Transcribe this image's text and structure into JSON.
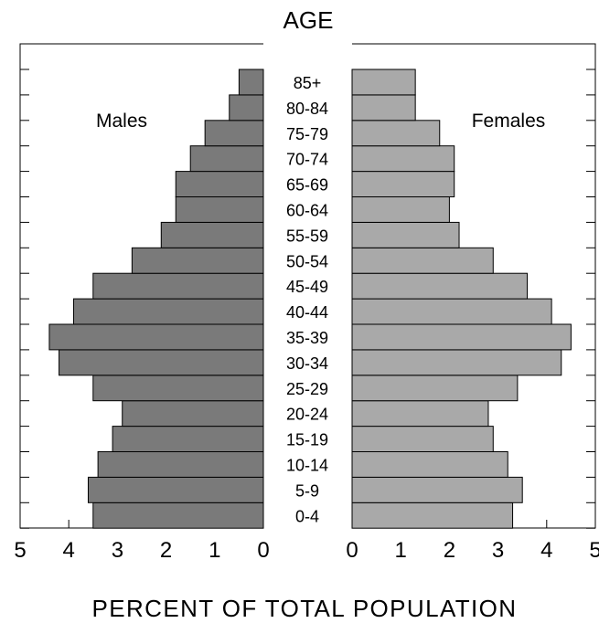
{
  "chart_data": {
    "type": "bar",
    "title": "AGE",
    "xlabel": "PERCENT OF TOTAL POPULATION",
    "ylabel": "",
    "categories": [
      "0-4",
      "5-9",
      "10-14",
      "15-19",
      "20-24",
      "25-29",
      "30-34",
      "35-39",
      "40-44",
      "45-49",
      "50-54",
      "55-59",
      "60-64",
      "65-69",
      "70-74",
      "75-79",
      "80-84",
      "85+"
    ],
    "series": [
      {
        "name": "Males",
        "side": "left",
        "color": "#7a7a7a",
        "values": [
          3.5,
          3.6,
          3.4,
          3.1,
          2.9,
          3.5,
          4.2,
          4.4,
          3.9,
          3.5,
          2.7,
          2.1,
          1.8,
          1.8,
          1.5,
          1.2,
          0.7,
          0.5
        ]
      },
      {
        "name": "Females",
        "side": "right",
        "color": "#a9a9a9",
        "values": [
          3.3,
          3.5,
          3.2,
          2.9,
          2.8,
          3.4,
          4.3,
          4.5,
          4.1,
          3.6,
          2.9,
          2.2,
          2.0,
          2.1,
          2.1,
          1.8,
          1.3,
          1.3
        ]
      }
    ],
    "x_ticks_left": [
      "5",
      "4",
      "3",
      "2",
      "1",
      "0"
    ],
    "x_ticks_right": [
      "0",
      "1",
      "2",
      "3",
      "4",
      "5"
    ],
    "xlim": [
      0,
      5
    ],
    "grid": false,
    "legend": "in-panel labels"
  }
}
